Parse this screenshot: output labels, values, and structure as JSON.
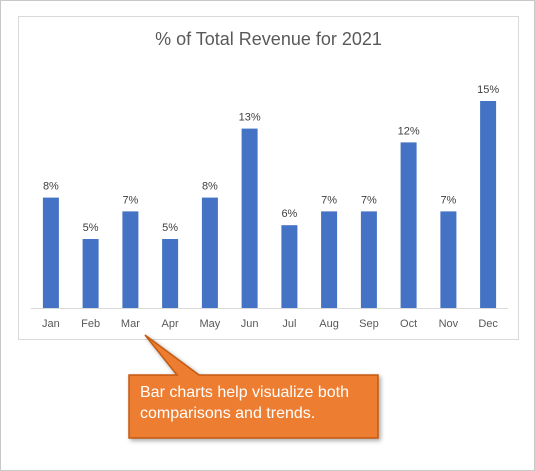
{
  "chart_data": {
    "type": "bar",
    "title": "% of Total Revenue for 2021",
    "categories": [
      "Jan",
      "Feb",
      "Mar",
      "Apr",
      "May",
      "Jun",
      "Jul",
      "Aug",
      "Sep",
      "Oct",
      "Nov",
      "Dec"
    ],
    "values": [
      8,
      5,
      7,
      5,
      8,
      13,
      6,
      7,
      7,
      12,
      7,
      15
    ],
    "data_labels": [
      "8%",
      "5%",
      "7%",
      "5%",
      "8%",
      "13%",
      "6%",
      "7%",
      "7%",
      "12%",
      "7%",
      "15%"
    ],
    "xlabel": "",
    "ylabel": "",
    "ylim": [
      0,
      15
    ],
    "grid": false,
    "legend": "none",
    "bar_color": "#4472C4"
  },
  "callout": {
    "text": "Bar charts help visualize both comparisons and trends.",
    "fill_color": "#ED7D31",
    "border_color": "#C55A11"
  }
}
